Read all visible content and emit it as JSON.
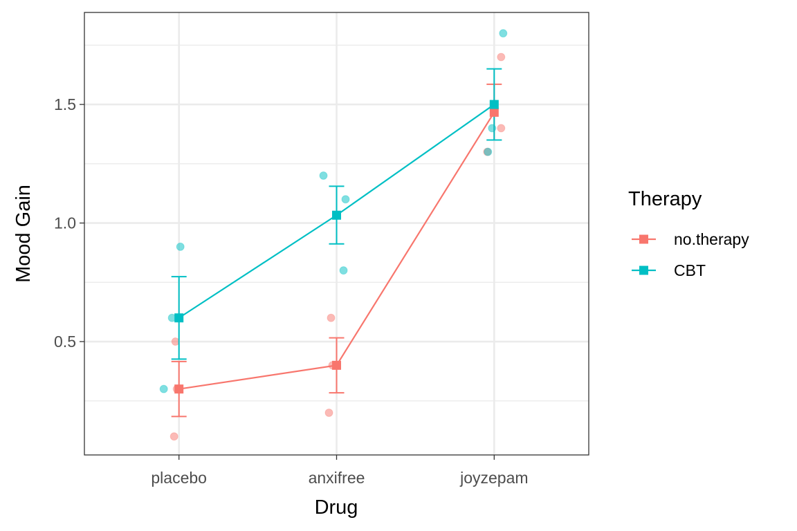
{
  "chart_data": {
    "type": "line",
    "title": "",
    "xlabel": "Drug",
    "ylabel": "Mood Gain",
    "categories": [
      "placebo",
      "anxifree",
      "joyzepam"
    ],
    "xlim": [
      0.4,
      3.6
    ],
    "ylim": [
      0.022,
      1.888
    ],
    "yticks": [
      0.5,
      1.0,
      1.5
    ],
    "ytick_labels": [
      "0.5",
      "1.0",
      "1.5"
    ],
    "grid": true,
    "legend": {
      "title": "Therapy",
      "placement": "right"
    },
    "series": [
      {
        "name": "no.therapy",
        "color": "#F8766D",
        "means": [
          0.3,
          0.4,
          1.467
        ],
        "error_low": [
          0.184,
          0.284,
          1.35
        ],
        "error_high": [
          0.416,
          0.516,
          1.585
        ],
        "raw_points": [
          {
            "category": "placebo",
            "values": [
              0.5,
              0.3,
              0.1
            ]
          },
          {
            "category": "anxifree",
            "values": [
              0.6,
              0.4,
              0.2
            ]
          },
          {
            "category": "joyzepam",
            "values": [
              1.7,
              1.4,
              1.3
            ]
          }
        ]
      },
      {
        "name": "CBT",
        "color": "#00BFC4",
        "means": [
          0.6,
          1.033,
          1.5
        ],
        "error_low": [
          0.426,
          0.912,
          1.35
        ],
        "error_high": [
          0.774,
          1.155,
          1.65
        ],
        "raw_points": [
          {
            "category": "placebo",
            "values": [
              0.9,
              0.6,
              0.3
            ]
          },
          {
            "category": "anxifree",
            "values": [
              1.2,
              1.1,
              0.8
            ]
          },
          {
            "category": "joyzepam",
            "values": [
              1.8,
              1.4,
              1.3
            ]
          }
        ]
      }
    ]
  }
}
